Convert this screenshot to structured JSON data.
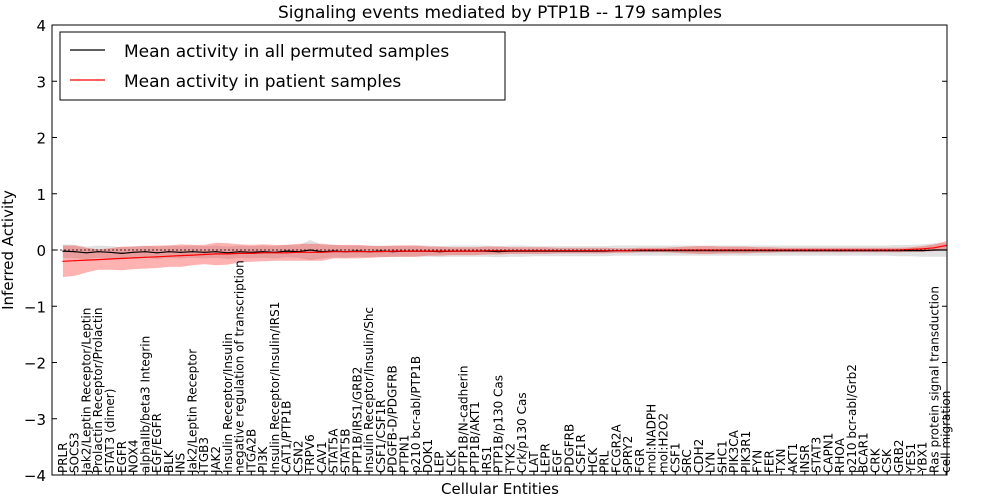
{
  "chart_data": {
    "type": "line",
    "title": "Signaling events mediated by PTP1B -- 179 samples",
    "xlabel": "Cellular Entities",
    "ylabel": "Inferred Activity",
    "ylim": [
      -4,
      4
    ],
    "yticks": [
      -4,
      -3,
      -2,
      -1,
      0,
      1,
      2,
      3,
      4
    ],
    "legend_position": "top-left",
    "categories": [
      "PRLR",
      "SOCS3",
      "Jak2/Leptin Receptor/Leptin",
      "Prolactin Receptor/Prolactin",
      "STAT3 (dimer)",
      "EGFR",
      "NOX4",
      "alphaIIb/beta3 Integrin",
      "EGF/EGFR",
      "BLK",
      "INS",
      "Jak2/Leptin Receptor",
      "ITGB3",
      "JAK2",
      "Insulin Receptor/Insulin",
      "negative regulation of transcription",
      "ITGA2B",
      "PI3K",
      "Insulin Receptor/Insulin/IRS1",
      "CAT1/PTP1B",
      "CSN2",
      "TRPV6",
      "CAV1",
      "STAT5A",
      "STAT5B",
      "PTP1B/IRS1/GRB2",
      "Insulin Receptor/Insulin/Shc",
      "CSF1/CSF1R",
      "PDGFB-D/PDGFRB",
      "PTPN1",
      "p210 bcr-abl/PTP1B",
      "DOK1",
      "LEP",
      "LCK",
      "PTP1B/N-cadherin",
      "PTP1B/AKT1",
      "IRS1",
      "PTP1B/p130 Cas",
      "TYK2",
      "Crk/p130 Cas",
      "LAT",
      "LEPR",
      "EGF",
      "PDGFRB",
      "CSF1R",
      "HCK",
      "PRL",
      "FCGR2A",
      "SPRY2",
      "FGR",
      "mol:NADPH",
      "mol:H2O2",
      "CSF1",
      "SRC",
      "CDH2",
      "LYN",
      "SHC1",
      "PIK3CA",
      "PIK3R1",
      "FYN",
      "FER",
      "TXN",
      "AKT1",
      "INSR",
      "STAT3",
      "CAPN1",
      "RHOA",
      "p210 bcr-abl/Grb2",
      "BCAR1",
      "CRK",
      "CSK",
      "GRB2",
      "YES1",
      "YBX1",
      "Ras protein signal transduction",
      "cell migration"
    ],
    "series": [
      {
        "name": "Mean activity in all permuted samples",
        "color": "#000000",
        "values": [
          -0.02,
          -0.03,
          -0.05,
          -0.03,
          -0.04,
          -0.06,
          -0.04,
          -0.03,
          -0.05,
          -0.03,
          -0.04,
          -0.03,
          -0.04,
          -0.03,
          -0.05,
          -0.03,
          -0.04,
          -0.03,
          -0.04,
          -0.02,
          -0.03,
          0.0,
          -0.03,
          -0.02,
          -0.03,
          -0.02,
          -0.03,
          -0.02,
          -0.03,
          -0.02,
          -0.02,
          -0.02,
          -0.03,
          -0.02,
          -0.02,
          -0.02,
          -0.02,
          -0.03,
          -0.02,
          -0.02,
          -0.02,
          -0.02,
          -0.02,
          -0.02,
          -0.02,
          -0.02,
          -0.02,
          -0.01,
          -0.01,
          -0.01,
          -0.01,
          -0.01,
          -0.01,
          -0.01,
          -0.01,
          -0.01,
          -0.01,
          -0.01,
          -0.01,
          -0.01,
          -0.01,
          -0.01,
          -0.01,
          -0.01,
          -0.01,
          -0.01,
          -0.01,
          -0.01,
          -0.01,
          -0.01,
          -0.01,
          -0.01,
          -0.01,
          -0.01,
          0.0,
          0.0
        ],
        "band": [
          0.12,
          0.12,
          0.11,
          0.11,
          0.11,
          0.11,
          0.11,
          0.11,
          0.11,
          0.11,
          0.11,
          0.11,
          0.11,
          0.11,
          0.11,
          0.11,
          0.11,
          0.11,
          0.11,
          0.11,
          0.11,
          0.18,
          0.12,
          0.11,
          0.11,
          0.1,
          0.1,
          0.1,
          0.1,
          0.1,
          0.1,
          0.1,
          0.1,
          0.1,
          0.1,
          0.1,
          0.1,
          0.1,
          0.1,
          0.1,
          0.09,
          0.09,
          0.09,
          0.09,
          0.09,
          0.09,
          0.09,
          0.09,
          0.09,
          0.09,
          0.09,
          0.09,
          0.09,
          0.09,
          0.09,
          0.09,
          0.09,
          0.09,
          0.09,
          0.09,
          0.09,
          0.09,
          0.09,
          0.09,
          0.09,
          0.09,
          0.09,
          0.09,
          0.09,
          0.09,
          0.09,
          0.1,
          0.1,
          0.11,
          0.12,
          0.12
        ]
      },
      {
        "name": "Mean activity in patient samples",
        "color": "#ff0000",
        "values": [
          -0.2,
          -0.19,
          -0.18,
          -0.17,
          -0.16,
          -0.15,
          -0.14,
          -0.13,
          -0.12,
          -0.11,
          -0.1,
          -0.09,
          -0.08,
          -0.07,
          -0.07,
          -0.06,
          -0.06,
          -0.05,
          -0.05,
          -0.05,
          -0.04,
          -0.04,
          -0.04,
          -0.03,
          -0.03,
          -0.03,
          -0.03,
          -0.03,
          -0.02,
          -0.02,
          -0.02,
          -0.02,
          -0.02,
          -0.02,
          -0.02,
          -0.02,
          -0.01,
          -0.01,
          -0.01,
          -0.01,
          -0.01,
          -0.01,
          -0.01,
          -0.01,
          -0.01,
          -0.01,
          -0.01,
          -0.01,
          -0.01,
          0.0,
          0.0,
          0.0,
          0.0,
          0.0,
          0.0,
          0.0,
          0.0,
          0.0,
          0.0,
          0.0,
          0.0,
          0.0,
          0.0,
          0.0,
          0.0,
          0.0,
          0.0,
          0.0,
          0.0,
          0.0,
          0.0,
          0.0,
          0.01,
          0.02,
          0.04,
          0.08
        ],
        "band": [
          0.28,
          0.27,
          0.22,
          0.18,
          0.19,
          0.21,
          0.2,
          0.2,
          0.2,
          0.19,
          0.2,
          0.18,
          0.17,
          0.2,
          0.19,
          0.16,
          0.15,
          0.15,
          0.14,
          0.14,
          0.15,
          0.15,
          0.15,
          0.12,
          0.12,
          0.12,
          0.11,
          0.1,
          0.1,
          0.1,
          0.1,
          0.08,
          0.08,
          0.07,
          0.07,
          0.07,
          0.07,
          0.07,
          0.06,
          0.06,
          0.06,
          0.06,
          0.05,
          0.05,
          0.05,
          0.05,
          0.05,
          0.04,
          0.04,
          0.04,
          0.04,
          0.04,
          0.05,
          0.06,
          0.07,
          0.07,
          0.06,
          0.06,
          0.06,
          0.05,
          0.05,
          0.04,
          0.04,
          0.04,
          0.04,
          0.04,
          0.04,
          0.04,
          0.04,
          0.04,
          0.04,
          0.04,
          0.04,
          0.05,
          0.06,
          0.08
        ]
      }
    ]
  }
}
